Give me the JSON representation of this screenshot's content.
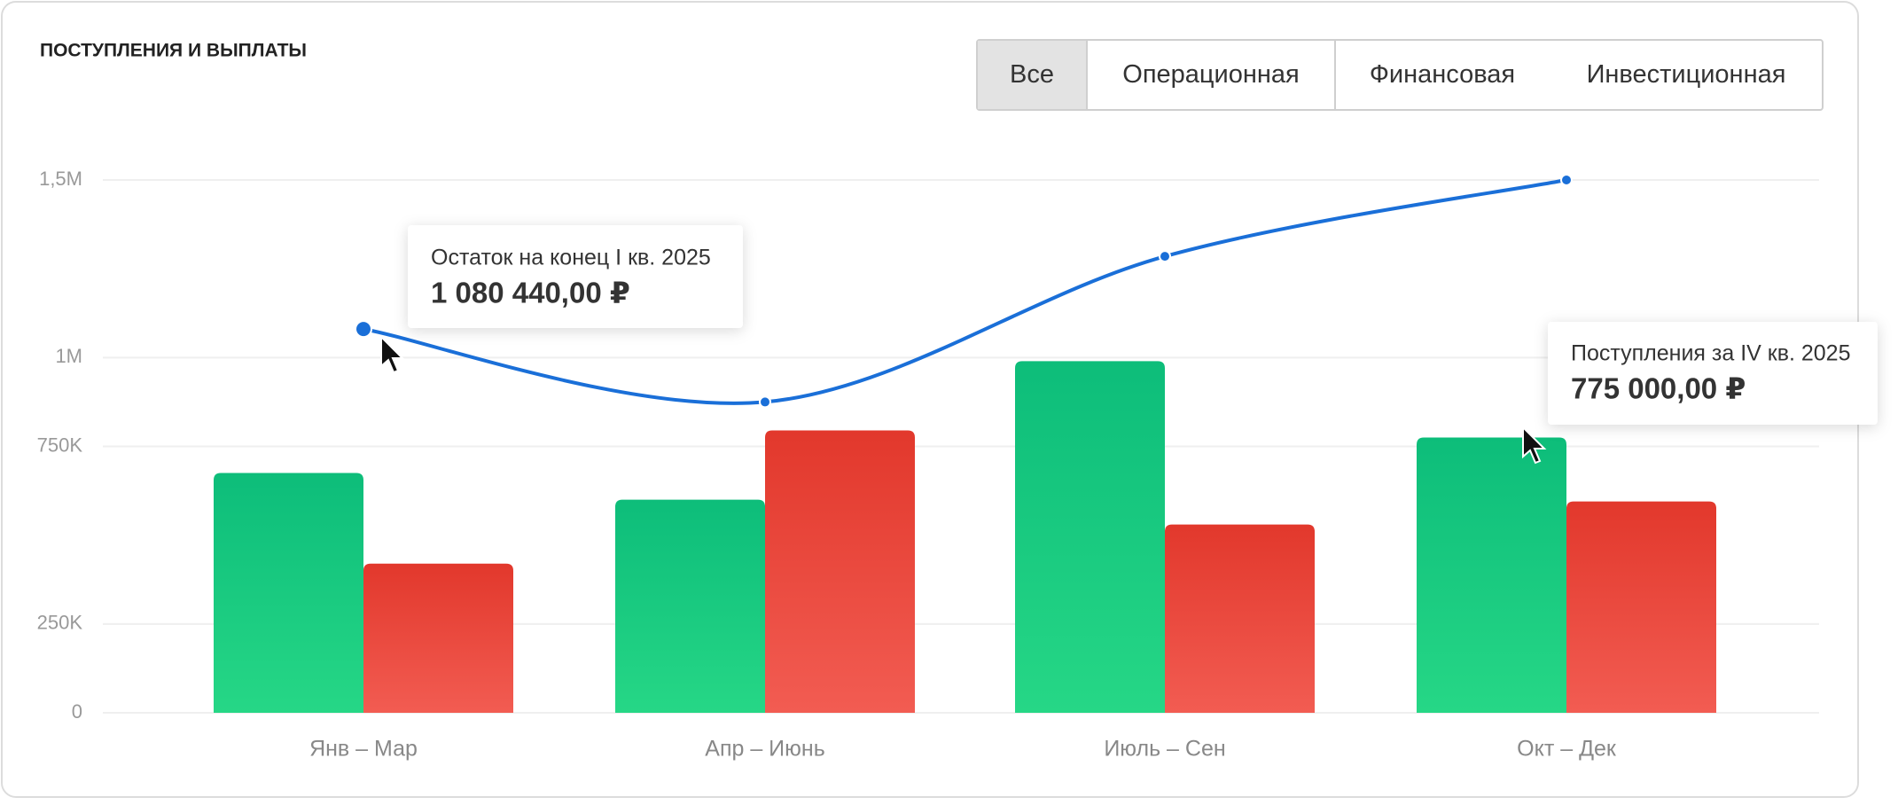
{
  "chart_data": {
    "type": "bar",
    "title": "ПОСТУПЛЕНИЯ И ВЫПЛАТЫ",
    "tabs": [
      "Все",
      "Операционная",
      "Финансовая",
      "Инвестиционная"
    ],
    "selected_tab": 0,
    "categories": [
      "Янв – Мар",
      "Апр – Июнь",
      "Июль – Сен",
      "Окт – Дек"
    ],
    "series": [
      {
        "color": "#0dbd7a",
        "color_light": "#26d786",
        "values": [
          675000,
          600000,
          990000,
          775000
        ],
        "value_labels": [
          null,
          null,
          null,
          "775 000,00 ₽"
        ]
      },
      {
        "color": "#e2382c",
        "color_light": "#f25c52",
        "values": [
          420000,
          795000,
          530000,
          595000
        ]
      },
      {
        "type": "line",
        "color": "#1a6fd8",
        "values": [
          1080440,
          875000,
          1285000,
          1500000
        ],
        "value_labels": [
          "1 080 440,00 ₽",
          null,
          null,
          null
        ]
      }
    ],
    "tooltips": [
      "Остаток на конец I кв. 2025",
      "Поступления за IV кв. 2025"
    ],
    "ylim": [
      0,
      1500000
    ],
    "yticks": [
      0,
      {
        "value": 250000,
        "label": "250K"
      },
      {
        "value": 750000,
        "label": "750K"
      },
      {
        "value": 1000000,
        "label": "1M"
      },
      {
        "value": 1500000,
        "label": "1,5M"
      }
    ],
    "grid": true
  }
}
